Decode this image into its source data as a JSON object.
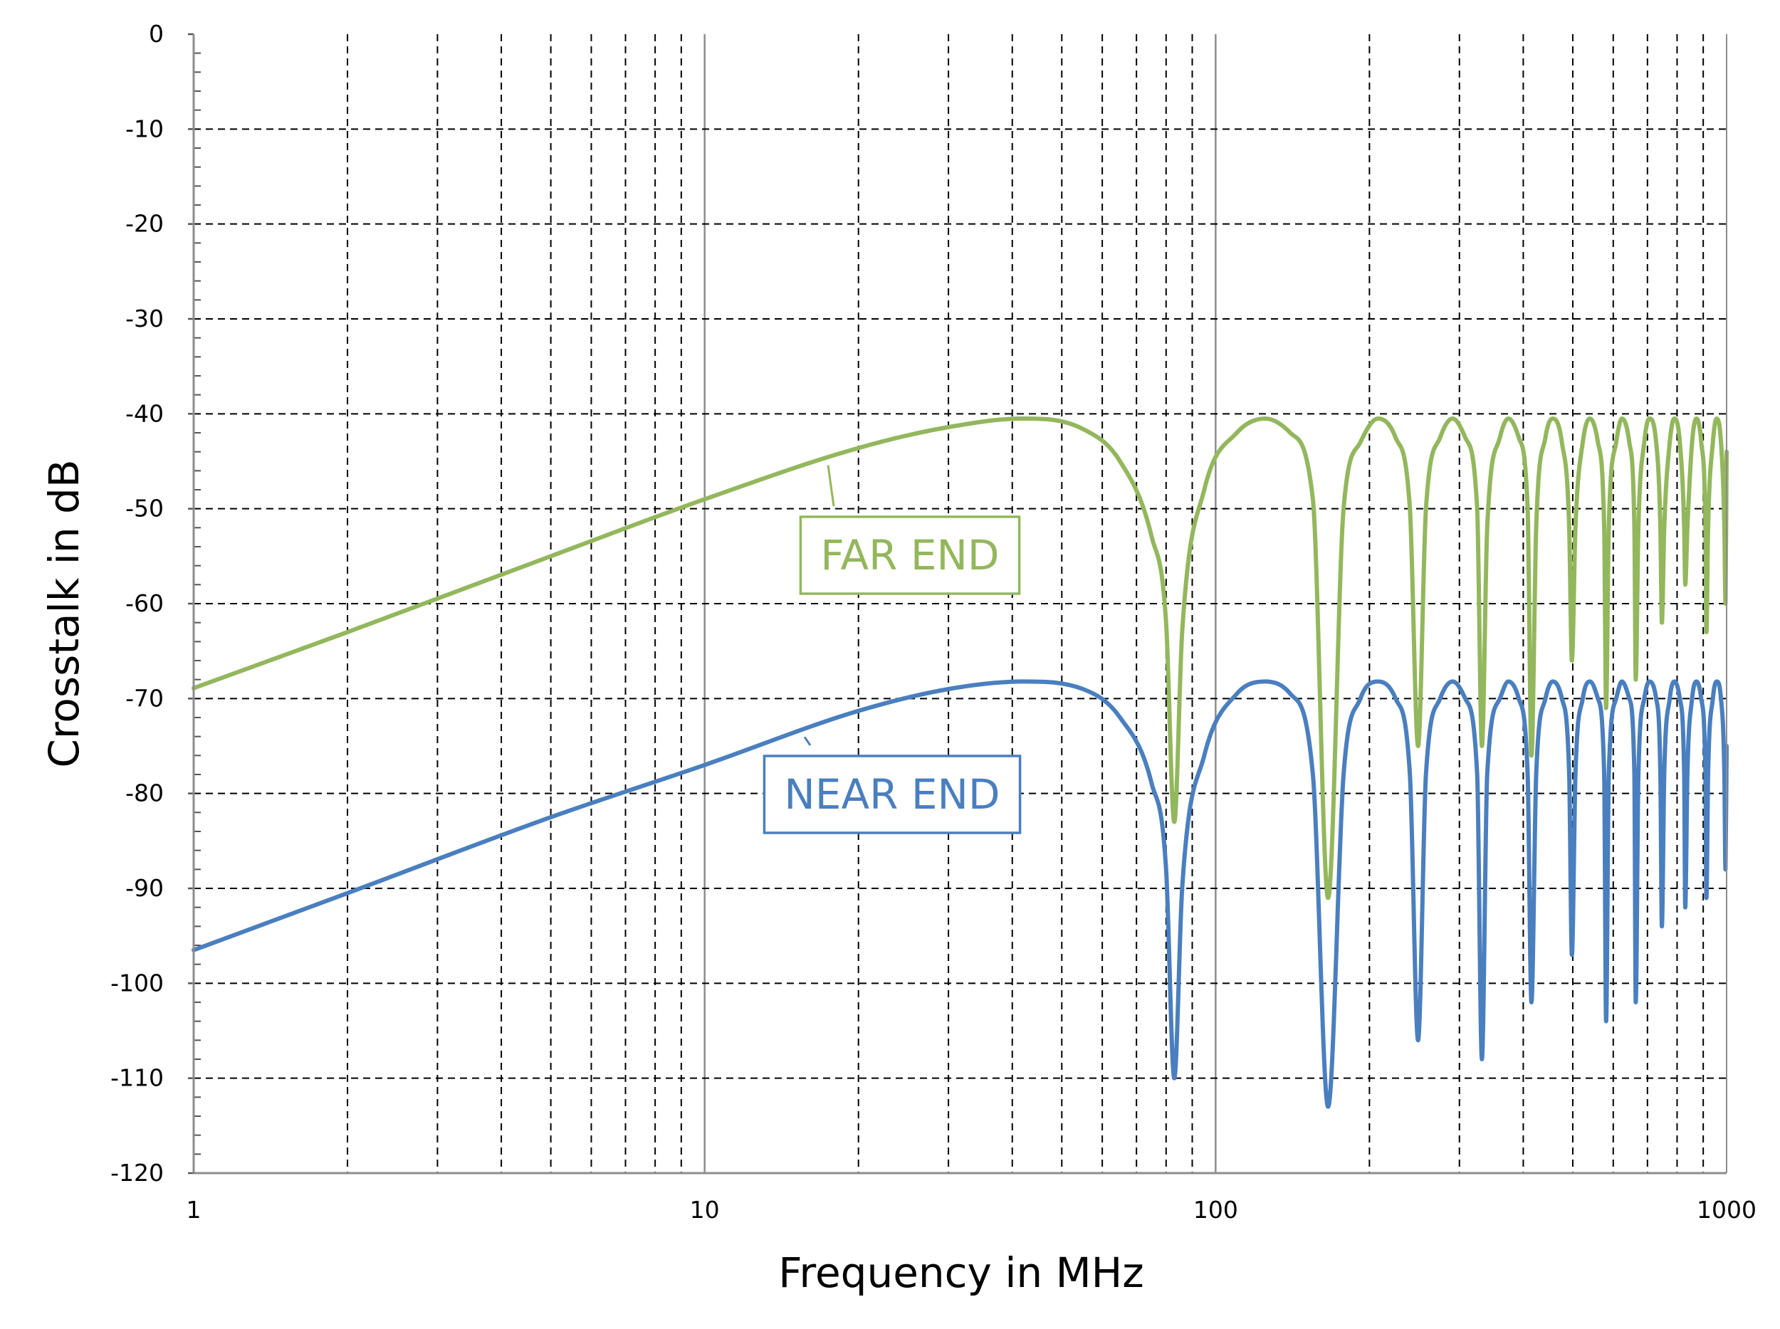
{
  "chart_data": {
    "type": "line",
    "title": "",
    "xlabel": "Frequency in MHz",
    "ylabel": "Crosstalk in dB",
    "xscale": "log",
    "xlim": [
      1,
      1000
    ],
    "ylim": [
      -120,
      0
    ],
    "grid": true,
    "x_ticks": [
      "1",
      "10",
      "100",
      "1000"
    ],
    "y_ticks": [
      "0",
      "-10",
      "-20",
      "-30",
      "-40",
      "-50",
      "-60",
      "-70",
      "-80",
      "-90",
      "-100",
      "-110",
      "-120"
    ],
    "colors": {
      "far_end": "#93b75c",
      "near_end": "#4a7fbf"
    },
    "annotations": [
      {
        "text": "FAR END",
        "series": "far_end"
      },
      {
        "text": "NEAR END",
        "series": "near_end"
      }
    ],
    "series": [
      {
        "name": "FAR END",
        "key": "far_end",
        "points": [
          [
            1,
            -68.9
          ],
          [
            2,
            -63.0
          ],
          [
            5,
            -55.0
          ],
          [
            10,
            -49.0
          ],
          [
            20,
            -43.6
          ],
          [
            30,
            -41.4
          ],
          [
            42,
            -40.5
          ],
          [
            55,
            -41.6
          ],
          [
            65,
            -45.0
          ],
          [
            75,
            -53.0
          ],
          [
            80,
            -62.0
          ],
          [
            83,
            -83.0
          ],
          [
            86,
            -63.0
          ],
          [
            95,
            -48.0
          ],
          [
            110,
            -42.0
          ],
          [
            125,
            -40.5
          ],
          [
            140,
            -42.0
          ],
          [
            155,
            -49.0
          ],
          [
            166,
            -91.0
          ],
          [
            178,
            -50.0
          ],
          [
            192,
            -43.0
          ],
          [
            208,
            -40.5
          ],
          [
            225,
            -42.5
          ],
          [
            240,
            -50.0
          ],
          [
            249,
            -75.0
          ],
          [
            258,
            -50.0
          ],
          [
            275,
            -42.5
          ],
          [
            291,
            -40.5
          ],
          [
            308,
            -42.5
          ],
          [
            325,
            -50.0
          ],
          [
            332,
            -75.0
          ],
          [
            340,
            -52.0
          ],
          [
            360,
            -42.5
          ],
          [
            374,
            -40.5
          ],
          [
            392,
            -42.5
          ],
          [
            408,
            -50.0
          ],
          [
            415,
            -76.0
          ],
          [
            424,
            -52.0
          ],
          [
            442,
            -42.5
          ],
          [
            457,
            -40.5
          ],
          [
            476,
            -43.0
          ],
          [
            492,
            -52.0
          ],
          [
            498,
            -66.0
          ],
          [
            506,
            -52.0
          ],
          [
            523,
            -43.0
          ],
          [
            540,
            -40.5
          ],
          [
            560,
            -43.0
          ],
          [
            576,
            -52.0
          ],
          [
            581,
            -71.0
          ],
          [
            588,
            -52.0
          ],
          [
            608,
            -43.0
          ],
          [
            624,
            -40.5
          ],
          [
            645,
            -43.0
          ],
          [
            660,
            -52.0
          ],
          [
            664,
            -68.0
          ],
          [
            672,
            -52.0
          ],
          [
            690,
            -43.0
          ],
          [
            706,
            -40.5
          ],
          [
            728,
            -43.0
          ],
          [
            742,
            -52.0
          ],
          [
            747,
            -62.0
          ],
          [
            755,
            -52.0
          ],
          [
            774,
            -43.0
          ],
          [
            790,
            -40.5
          ],
          [
            810,
            -43.0
          ],
          [
            826,
            -52.0
          ],
          [
            830,
            -58.0
          ],
          [
            838,
            -52.0
          ],
          [
            856,
            -43.0
          ],
          [
            873,
            -40.5
          ],
          [
            892,
            -43.0
          ],
          [
            909,
            -52.0
          ],
          [
            913,
            -63.0
          ],
          [
            920,
            -52.0
          ],
          [
            940,
            -43.0
          ],
          [
            956,
            -40.5
          ],
          [
            975,
            -43.0
          ],
          [
            990,
            -52.0
          ],
          [
            995,
            -60.0
          ],
          [
            1000,
            -44.0
          ]
        ]
      },
      {
        "name": "NEAR END",
        "key": "near_end",
        "points": [
          [
            1,
            -96.5
          ],
          [
            2,
            -90.5
          ],
          [
            5,
            -82.5
          ],
          [
            10,
            -77.0
          ],
          [
            20,
            -71.3
          ],
          [
            30,
            -69.0
          ],
          [
            42,
            -68.2
          ],
          [
            55,
            -69.0
          ],
          [
            65,
            -72.0
          ],
          [
            75,
            -79.0
          ],
          [
            80,
            -88.0
          ],
          [
            83,
            -110.0
          ],
          [
            86,
            -90.0
          ],
          [
            95,
            -76.0
          ],
          [
            110,
            -69.5
          ],
          [
            125,
            -68.2
          ],
          [
            140,
            -69.5
          ],
          [
            155,
            -78.0
          ],
          [
            166,
            -113.0
          ],
          [
            178,
            -78.0
          ],
          [
            192,
            -70.0
          ],
          [
            208,
            -68.2
          ],
          [
            225,
            -70.0
          ],
          [
            240,
            -78.0
          ],
          [
            249,
            -106.0
          ],
          [
            258,
            -78.0
          ],
          [
            275,
            -70.0
          ],
          [
            291,
            -68.2
          ],
          [
            308,
            -70.0
          ],
          [
            325,
            -78.0
          ],
          [
            332,
            -108.0
          ],
          [
            340,
            -78.0
          ],
          [
            360,
            -70.0
          ],
          [
            374,
            -68.2
          ],
          [
            392,
            -70.0
          ],
          [
            408,
            -78.0
          ],
          [
            415,
            -102.0
          ],
          [
            424,
            -78.0
          ],
          [
            442,
            -70.0
          ],
          [
            457,
            -68.2
          ],
          [
            476,
            -70.0
          ],
          [
            492,
            -78.0
          ],
          [
            498,
            -97.0
          ],
          [
            506,
            -78.0
          ],
          [
            523,
            -70.0
          ],
          [
            540,
            -68.2
          ],
          [
            560,
            -70.0
          ],
          [
            576,
            -78.0
          ],
          [
            581,
            -104.0
          ],
          [
            588,
            -78.0
          ],
          [
            608,
            -70.0
          ],
          [
            624,
            -68.2
          ],
          [
            645,
            -70.0
          ],
          [
            660,
            -78.0
          ],
          [
            664,
            -102.0
          ],
          [
            672,
            -78.0
          ],
          [
            690,
            -70.0
          ],
          [
            706,
            -68.2
          ],
          [
            728,
            -70.0
          ],
          [
            742,
            -78.0
          ],
          [
            747,
            -94.0
          ],
          [
            755,
            -78.0
          ],
          [
            774,
            -70.0
          ],
          [
            790,
            -68.2
          ],
          [
            810,
            -70.0
          ],
          [
            826,
            -78.0
          ],
          [
            830,
            -92.0
          ],
          [
            838,
            -78.0
          ],
          [
            856,
            -70.0
          ],
          [
            873,
            -68.2
          ],
          [
            892,
            -70.0
          ],
          [
            909,
            -78.0
          ],
          [
            913,
            -91.0
          ],
          [
            920,
            -78.0
          ],
          [
            940,
            -70.0
          ],
          [
            956,
            -68.2
          ],
          [
            975,
            -70.0
          ],
          [
            990,
            -78.0
          ],
          [
            995,
            -88.0
          ],
          [
            1000,
            -75.0
          ]
        ]
      }
    ]
  }
}
